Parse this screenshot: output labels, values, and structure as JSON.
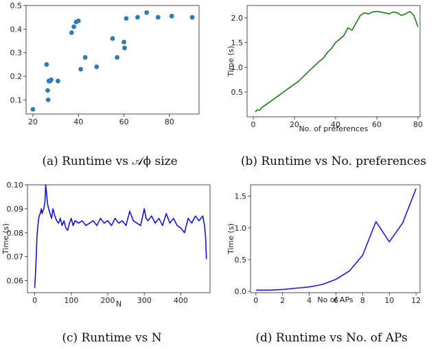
{
  "chart_data": [
    {
      "type": "scatter",
      "caption": "(a) Runtime vs 𝒜ϕ size",
      "xlabel": "",
      "ylabel": "",
      "xlim": [
        17,
        93
      ],
      "ylim": [
        0.04,
        0.5
      ],
      "xticks": [
        20,
        40,
        60,
        80
      ],
      "yticks": [
        0.1,
        0.2,
        0.3,
        0.4,
        0.5
      ],
      "color": "#2f7bb3",
      "points": [
        [
          20,
          0.06
        ],
        [
          26,
          0.25
        ],
        [
          26.5,
          0.14
        ],
        [
          26.7,
          0.1
        ],
        [
          27,
          0.18
        ],
        [
          27.5,
          0.18
        ],
        [
          28,
          0.185
        ],
        [
          31,
          0.18
        ],
        [
          37,
          0.385
        ],
        [
          38,
          0.41
        ],
        [
          39,
          0.43
        ],
        [
          40,
          0.435
        ],
        [
          41,
          0.23
        ],
        [
          43,
          0.28
        ],
        [
          48,
          0.24
        ],
        [
          55,
          0.36
        ],
        [
          57,
          0.28
        ],
        [
          60,
          0.345
        ],
        [
          60.3,
          0.32
        ],
        [
          61,
          0.445
        ],
        [
          66,
          0.45
        ],
        [
          70,
          0.47
        ],
        [
          75,
          0.45
        ],
        [
          81,
          0.455
        ],
        [
          90,
          0.45
        ]
      ]
    },
    {
      "type": "line",
      "caption": "(b) Runtime vs No. preferences",
      "xlabel": "No. of preferences",
      "ylabel": "Time (s)",
      "xlim": [
        -3,
        81
      ],
      "ylim": [
        0.0,
        2.25
      ],
      "xticks": [
        0,
        20,
        40,
        60,
        80
      ],
      "yticks": [
        0.5,
        1.0,
        1.5,
        2.0
      ],
      "color": "#1a7a12",
      "x": [
        1,
        2,
        3,
        4,
        6,
        8,
        10,
        12,
        14,
        16,
        18,
        20,
        22,
        24,
        26,
        28,
        30,
        32,
        34,
        36,
        38,
        40,
        42,
        44,
        46,
        48,
        50,
        52,
        54,
        56,
        58,
        60,
        62,
        64,
        66,
        68,
        70,
        72,
        74,
        76,
        78,
        80
      ],
      "y": [
        0.1,
        0.14,
        0.13,
        0.18,
        0.24,
        0.3,
        0.36,
        0.42,
        0.48,
        0.54,
        0.6,
        0.66,
        0.72,
        0.8,
        0.88,
        0.96,
        1.04,
        1.12,
        1.18,
        1.3,
        1.38,
        1.5,
        1.57,
        1.64,
        1.8,
        1.75,
        1.9,
        2.05,
        2.1,
        2.08,
        2.12,
        2.13,
        2.12,
        2.1,
        2.08,
        2.12,
        2.1,
        2.05,
        2.08,
        2.13,
        2.05,
        1.82
      ]
    },
    {
      "type": "line",
      "caption": "(c) Runtime vs N",
      "xlabel": "N",
      "ylabel": "Time (s)",
      "xlim": [
        -20,
        480
      ],
      "ylim": [
        0.055,
        0.1
      ],
      "xticks": [
        0,
        100,
        200,
        300,
        400
      ],
      "yticks": [
        0.06,
        0.07,
        0.08,
        0.09,
        0.1
      ],
      "color": "#1212d8",
      "x": [
        0,
        2,
        4,
        6,
        8,
        10,
        12,
        15,
        18,
        20,
        22,
        25,
        28,
        30,
        32,
        35,
        38,
        42,
        46,
        50,
        55,
        60,
        65,
        70,
        75,
        80,
        85,
        90,
        95,
        100,
        105,
        110,
        120,
        130,
        140,
        150,
        160,
        170,
        180,
        190,
        200,
        210,
        220,
        230,
        240,
        250,
        260,
        270,
        280,
        290,
        300,
        305,
        310,
        320,
        330,
        340,
        350,
        360,
        370,
        380,
        390,
        400,
        410,
        420,
        430,
        440,
        450,
        460,
        465,
        468,
        470
      ],
      "y": [
        0.057,
        0.063,
        0.07,
        0.078,
        0.082,
        0.085,
        0.087,
        0.088,
        0.09,
        0.088,
        0.089,
        0.09,
        0.093,
        0.1,
        0.097,
        0.092,
        0.09,
        0.088,
        0.086,
        0.09,
        0.087,
        0.085,
        0.084,
        0.086,
        0.083,
        0.085,
        0.082,
        0.081,
        0.084,
        0.086,
        0.083,
        0.085,
        0.084,
        0.085,
        0.083,
        0.084,
        0.085,
        0.083,
        0.086,
        0.084,
        0.085,
        0.083,
        0.086,
        0.084,
        0.085,
        0.083,
        0.089,
        0.085,
        0.084,
        0.083,
        0.09,
        0.086,
        0.085,
        0.087,
        0.084,
        0.086,
        0.083,
        0.088,
        0.084,
        0.086,
        0.083,
        0.082,
        0.08,
        0.086,
        0.084,
        0.087,
        0.085,
        0.087,
        0.083,
        0.078,
        0.069
      ]
    },
    {
      "type": "line",
      "caption": "(d) Runtime vs No. of APs",
      "xlabel": "No of APs",
      "ylabel": "Time (s)",
      "xlim": [
        -0.4,
        12.3
      ],
      "ylim": [
        -0.02,
        1.68
      ],
      "xticks": [
        0,
        2,
        4,
        6,
        8,
        10,
        12
      ],
      "yticks": [
        0.0,
        0.5,
        1.0,
        1.5
      ],
      "color": "#1a1ae0",
      "x": [
        0,
        1,
        2,
        3,
        4,
        5,
        6,
        7,
        8,
        9,
        10,
        11,
        12
      ],
      "y": [
        0.02,
        0.02,
        0.03,
        0.05,
        0.07,
        0.11,
        0.19,
        0.32,
        0.57,
        1.1,
        0.78,
        1.08,
        1.62
      ]
    }
  ]
}
